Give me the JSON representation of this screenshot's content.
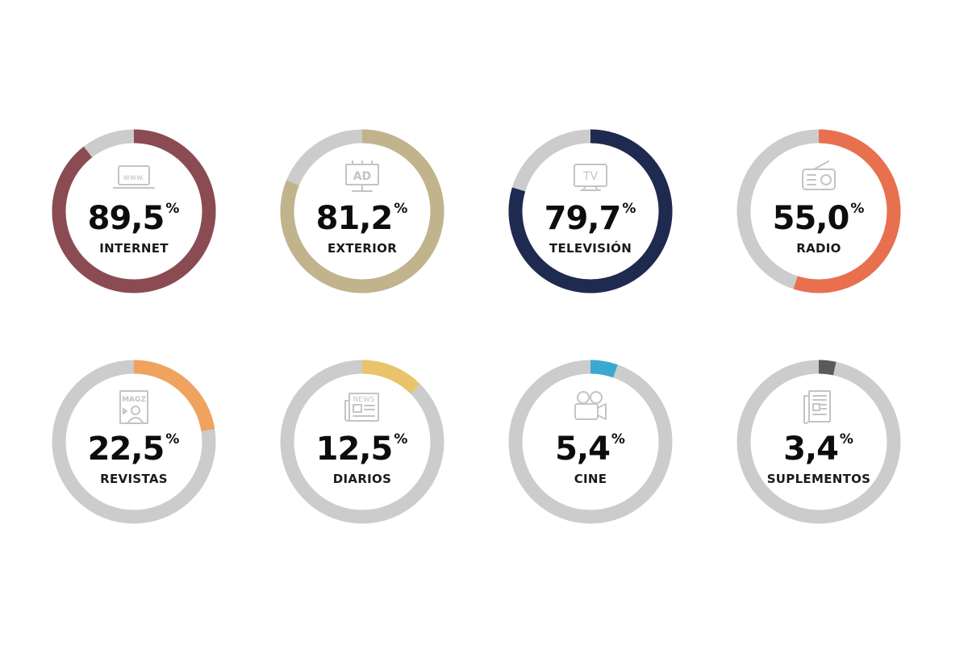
{
  "chart_data": {
    "type": "donut",
    "track_color": "#cccccc",
    "max": 100,
    "items": [
      {
        "label": "INTERNET",
        "value": 89.5,
        "display": "89,5",
        "unit": "%",
        "color": "#8b4b52",
        "icon": "laptop-www-icon",
        "icon_text": "www."
      },
      {
        "label": "EXTERIOR",
        "value": 81.2,
        "display": "81,2",
        "unit": "%",
        "color": "#c1b38c",
        "icon": "billboard-icon",
        "icon_text": "AD"
      },
      {
        "label": "TELEVISIÓN",
        "value": 79.7,
        "display": "79,7",
        "unit": "%",
        "color": "#1e2a4f",
        "icon": "tv-icon",
        "icon_text": "TV"
      },
      {
        "label": "RADIO",
        "value": 55.0,
        "display": "55,0",
        "unit": "%",
        "color": "#e8704f",
        "icon": "radio-icon"
      },
      {
        "label": "REVISTAS",
        "value": 22.5,
        "display": "22,5",
        "unit": "%",
        "color": "#f0a35e",
        "icon": "magazine-icon",
        "icon_text": "MAGZ"
      },
      {
        "label": "DIARIOS",
        "value": 12.5,
        "display": "12,5",
        "unit": "%",
        "color": "#e9c46a",
        "icon": "newspaper-icon",
        "icon_text": "NEWS"
      },
      {
        "label": "CINE",
        "value": 5.4,
        "display": "5,4",
        "unit": "%",
        "color": "#3aa9d0",
        "icon": "movie-camera-icon"
      },
      {
        "label": "SUPLEMENTOS",
        "value": 3.4,
        "display": "3,4",
        "unit": "%",
        "color": "#5a5a5a",
        "icon": "supplement-icon"
      }
    ]
  }
}
